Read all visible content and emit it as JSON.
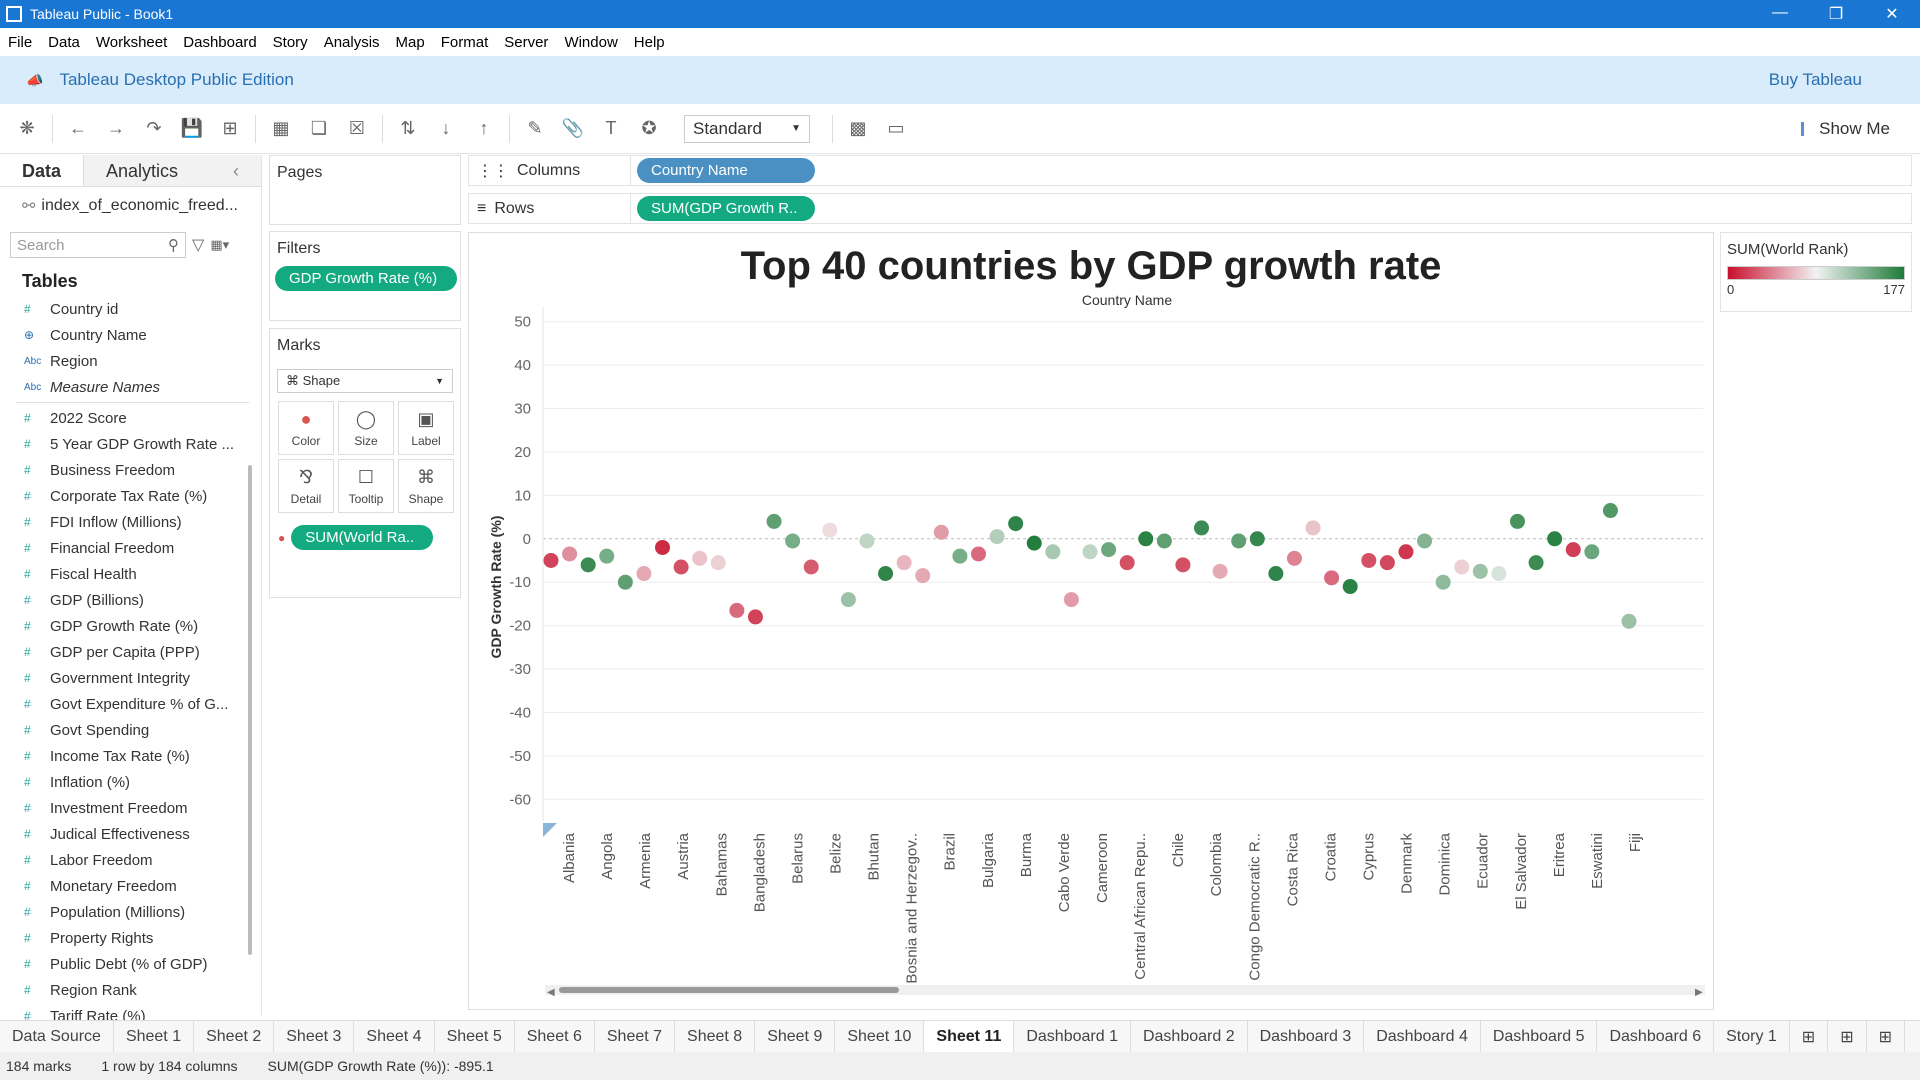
{
  "window": {
    "title": "Tableau Public - Book1"
  },
  "menu": [
    "File",
    "Data",
    "Worksheet",
    "Dashboard",
    "Story",
    "Analysis",
    "Map",
    "Format",
    "Server",
    "Window",
    "Help"
  ],
  "banner": {
    "edition": "Tableau Desktop Public Edition",
    "buy": "Buy Tableau"
  },
  "toolbar": {
    "fit_select": "Standard",
    "show_me": "Show Me"
  },
  "data_pane": {
    "tab_data": "Data",
    "tab_analytics": "Analytics",
    "datasource": "index_of_economic_freed...",
    "search_placeholder": "Search",
    "tables_heading": "Tables",
    "dimensions": [
      {
        "icon": "#",
        "label": "Country id"
      },
      {
        "icon": "globe",
        "label": "Country Name"
      },
      {
        "icon": "Abc",
        "label": "Region"
      },
      {
        "icon": "Abc",
        "label": "Measure Names"
      }
    ],
    "measures": [
      "2022 Score",
      "5 Year GDP Growth Rate ...",
      "Business Freedom",
      "Corporate Tax Rate (%)",
      "FDI Inflow (Millions)",
      "Financial Freedom",
      "Fiscal Health",
      "GDP (Billions)",
      "GDP Growth Rate (%)",
      "GDP per Capita (PPP)",
      "Government Integrity",
      "Govt Expenditure % of G...",
      "Govt Spending",
      "Income Tax Rate (%)",
      "Inflation (%)",
      "Investment Freedom",
      "Judical Effectiveness",
      "Labor Freedom",
      "Monetary Freedom",
      "Population (Millions)",
      "Property Rights",
      "Public Debt (% of GDP)",
      "Region Rank",
      "Tariff Rate (%)"
    ]
  },
  "pages": {
    "title": "Pages"
  },
  "filters": {
    "title": "Filters",
    "pill": "GDP Growth Rate (%)"
  },
  "marks": {
    "title": "Marks",
    "type": "Shape",
    "buttons": [
      "Color",
      "Size",
      "Label",
      "Detail",
      "Tooltip",
      "Shape"
    ],
    "pill": "SUM(World Ra.."
  },
  "shelves": {
    "columns_label": "Columns",
    "columns_pill": "Country Name",
    "rows_label": "Rows",
    "rows_pill": "SUM(GDP Growth R.."
  },
  "legend": {
    "title": "SUM(World Rank)",
    "min": "0",
    "max": "177",
    "color_low": "#c8102e",
    "color_mid": "#f2f2f2",
    "color_high": "#1e7b3a"
  },
  "chart_data": {
    "type": "scatter",
    "title": "Top 40 countries by GDP growth rate",
    "xlabel": "Country Name",
    "ylabel": "GDP Growth Rate (%)",
    "ylim": [
      -65,
      52
    ],
    "yticks": [
      50,
      40,
      30,
      20,
      10,
      0,
      -10,
      -20,
      -30,
      -40,
      -50,
      -60
    ],
    "grid": true,
    "categories": [
      "Albania",
      "Angola",
      "Armenia",
      "Austria",
      "Bahamas",
      "Bangladesh",
      "Belarus",
      "Belize",
      "Bhutan",
      "Bosnia and Herzegov..",
      "Brazil",
      "Bulgaria",
      "Burma",
      "Cabo Verde",
      "Cameroon",
      "Central African Repu..",
      "Chile",
      "Colombia",
      "Congo Democratic R..",
      "Costa Rica",
      "Croatia",
      "Cyprus",
      "Denmark",
      "Dominica",
      "Ecuador",
      "El Salvador",
      "Eritrea",
      "Eswatini",
      "Fiji"
    ],
    "points": [
      {
        "y": -5,
        "rank": 20
      },
      {
        "y": -3.5,
        "rank": 50
      },
      {
        "y": -6,
        "rank": 165
      },
      {
        "y": -4,
        "rank": 140
      },
      {
        "y": -10,
        "rank": 150
      },
      {
        "y": -8,
        "rank": 60
      },
      {
        "y": -2,
        "rank": 10
      },
      {
        "y": -6.5,
        "rank": 25
      },
      {
        "y": -4.5,
        "rank": 70
      },
      {
        "y": -5.5,
        "rank": 75
      },
      {
        "y": -16.5,
        "rank": 35
      },
      {
        "y": -18,
        "rank": 20
      },
      {
        "y": 4,
        "rank": 150
      },
      {
        "y": -0.5,
        "rank": 140
      },
      {
        "y": -6.5,
        "rank": 30
      },
      {
        "y": 2,
        "rank": 80
      },
      {
        "y": -14,
        "rank": 125
      },
      {
        "y": -0.5,
        "rank": 110
      },
      {
        "y": -8,
        "rank": 170
      },
      {
        "y": -5.5,
        "rank": 65
      },
      {
        "y": -8.5,
        "rank": 60
      },
      {
        "y": 1.5,
        "rank": 55
      },
      {
        "y": -4,
        "rank": 140
      },
      {
        "y": -3.5,
        "rank": 35
      },
      {
        "y": 0.5,
        "rank": 115
      },
      {
        "y": 3.5,
        "rank": 170
      },
      {
        "y": -1,
        "rank": 175
      },
      {
        "y": -3,
        "rank": 120
      },
      {
        "y": -14,
        "rank": 55
      },
      {
        "y": -3,
        "rank": 110
      },
      {
        "y": -2.5,
        "rank": 145
      },
      {
        "y": -5.5,
        "rank": 25
      },
      {
        "y": 0,
        "rank": 172
      },
      {
        "y": -0.5,
        "rank": 150
      },
      {
        "y": -6,
        "rank": 25
      },
      {
        "y": 2.5,
        "rank": 165
      },
      {
        "y": -7.5,
        "rank": 60
      },
      {
        "y": -0.5,
        "rank": 150
      },
      {
        "y": 0,
        "rank": 168
      },
      {
        "y": -8,
        "rank": 170
      },
      {
        "y": -4.5,
        "rank": 45
      },
      {
        "y": 2.5,
        "rank": 70
      },
      {
        "y": -9,
        "rank": 35
      },
      {
        "y": -11,
        "rank": 172
      },
      {
        "y": -5,
        "rank": 25
      },
      {
        "y": -5.5,
        "rank": 22
      },
      {
        "y": -3,
        "rank": 15
      },
      {
        "y": -0.5,
        "rank": 135
      },
      {
        "y": -10,
        "rank": 130
      },
      {
        "y": -6.5,
        "rank": 75
      },
      {
        "y": -7.5,
        "rank": 125
      },
      {
        "y": -8,
        "rank": 100
      },
      {
        "y": 4,
        "rank": 160
      },
      {
        "y": -5.5,
        "rank": 165
      },
      {
        "y": 0,
        "rank": 172
      },
      {
        "y": -2.5,
        "rank": 18
      },
      {
        "y": -3,
        "rank": 145
      },
      {
        "y": 6.5,
        "rank": 155
      },
      {
        "y": -19,
        "rank": 125
      }
    ]
  },
  "sheet_tabs": [
    "Data Source",
    "Sheet 1",
    "Sheet 2",
    "Sheet 3",
    "Sheet 4",
    "Sheet 5",
    "Sheet 6",
    "Sheet 7",
    "Sheet 8",
    "Sheet 9",
    "Sheet 10",
    "Sheet 11",
    "Dashboard 1",
    "Dashboard 2",
    "Dashboard 3",
    "Dashboard 4",
    "Dashboard 5",
    "Dashboard 6",
    "Story 1"
  ],
  "active_sheet": "Sheet 11",
  "status": {
    "marks": "184 marks",
    "dims": "1 row by 184 columns",
    "sum": "SUM(GDP Growth Rate (%)): -895.1"
  }
}
